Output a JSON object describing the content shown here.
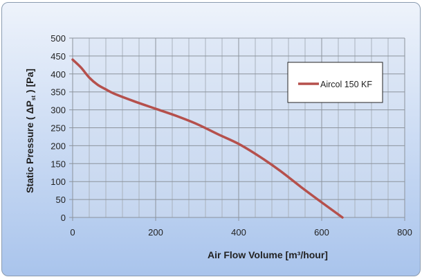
{
  "chart_data": {
    "type": "line",
    "xlabel": "Air Flow Volume [m³/hour]",
    "ylabel": "Static Pressure ( ΔPst ) [Pa]",
    "xlim": [
      0,
      800
    ],
    "ylim": [
      0,
      500
    ],
    "xticks": [
      0,
      200,
      400,
      600,
      800
    ],
    "yticks": [
      0,
      50,
      100,
      150,
      200,
      250,
      300,
      350,
      400,
      450,
      500
    ],
    "grid": true,
    "legend_position": "top-right",
    "series": [
      {
        "name": "Aircol 150 KF",
        "color": "#b5504c",
        "x": [
          0,
          20,
          40,
          60,
          80,
          100,
          150,
          200,
          250,
          300,
          350,
          400,
          450,
          500,
          550,
          600,
          650
        ],
        "y": [
          440,
          418,
          390,
          370,
          357,
          345,
          323,
          303,
          283,
          260,
          232,
          205,
          170,
          130,
          85,
          42,
          0
        ]
      }
    ]
  }
}
